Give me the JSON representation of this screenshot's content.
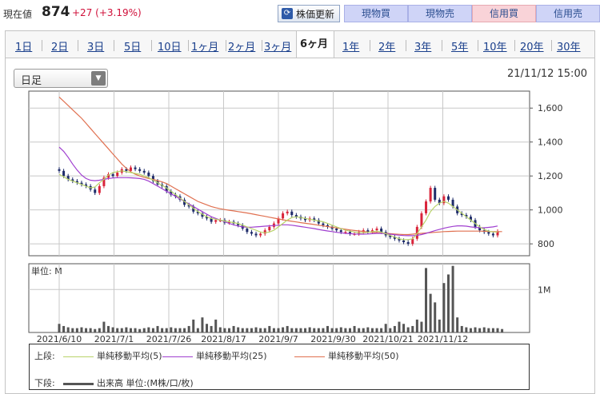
{
  "header": {
    "price_label": "現在値",
    "price": "874",
    "change": "+27 (+3.19%)",
    "refresh_label": "株価更新",
    "buttons": [
      {
        "label": "現物買",
        "style": "blue"
      },
      {
        "label": "現物売",
        "style": "blue"
      },
      {
        "label": "信用買",
        "style": "pink"
      },
      {
        "label": "信用売",
        "style": "blue"
      }
    ]
  },
  "tabs": [
    {
      "label": "1日"
    },
    {
      "label": "2日"
    },
    {
      "label": "3日"
    },
    {
      "label": "5日"
    },
    {
      "label": "10日"
    },
    {
      "label": "1ヶ月"
    },
    {
      "label": "2ヶ月"
    },
    {
      "label": "3ヶ月"
    },
    {
      "label": "6ヶ月",
      "active": true
    },
    {
      "label": "1年"
    },
    {
      "label": "2年"
    },
    {
      "label": "3年"
    },
    {
      "label": "5年"
    },
    {
      "label": "10年"
    },
    {
      "label": "20年"
    },
    {
      "label": "30年"
    }
  ],
  "period_select": "日足",
  "datetime": "21/11/12 15:00",
  "volume_unit_label": "単位: M",
  "legend": {
    "upper_label": "上段:",
    "lower_label": "下段:",
    "items": [
      {
        "label": "単純移動平均(5)",
        "color": "#b9d36a"
      },
      {
        "label": "単純移動平均(25)",
        "color": "#a03fd0"
      },
      {
        "label": "単純移動平均(50)",
        "color": "#e07050"
      }
    ],
    "volume_item": {
      "label": "出来高 単位:(M株/口/枚)",
      "color": "#555555"
    }
  },
  "colors": {
    "up": "#d9243a",
    "down": "#1f2c6a",
    "volume": "#555555",
    "grid": "#c8c8c8"
  },
  "chart_data": {
    "type": "line",
    "x_ticks": [
      "2021/6/10",
      "2021/7/1",
      "2021/7/26",
      "2021/8/17",
      "2021/9/7",
      "2021/9/30",
      "2021/10/21",
      "2021/11/12"
    ],
    "price_axis": {
      "ticks": [
        "800",
        "1,000",
        "1,200",
        "1,400",
        "1,600"
      ],
      "range": [
        730,
        1700
      ]
    },
    "volume_axis": {
      "ticks": [
        "1M"
      ],
      "range": [
        0,
        1.6
      ]
    },
    "series": [
      {
        "key": "ma5",
        "values": [
          1210,
          1195,
          1180,
          1170,
          1160,
          1150,
          1140,
          1130,
          1135,
          1160,
          1180,
          1205,
          1220,
          1225,
          1230,
          1225,
          1220,
          1215,
          1210,
          1200,
          1190,
          1175,
          1160,
          1145,
          1130,
          1110,
          1090,
          1070,
          1050,
          1030,
          1010,
          990,
          975,
          960,
          950,
          945,
          940,
          935,
          930,
          925,
          920,
          910,
          900,
          890,
          880,
          870,
          865,
          870,
          880,
          900,
          920,
          940,
          955,
          960,
          955,
          950,
          945,
          940,
          935,
          930,
          920,
          910,
          900,
          890,
          880,
          875,
          870,
          865,
          865,
          868,
          872,
          875,
          870,
          860,
          850,
          840,
          830,
          825,
          825,
          830,
          860,
          900,
          940,
          990,
          1020,
          1040,
          1050,
          1040,
          1020,
          1000,
          980,
          960,
          940,
          920,
          900,
          885,
          875,
          870,
          870
        ]
      },
      {
        "key": "ma25",
        "values": [
          1370,
          1345,
          1310,
          1270,
          1235,
          1205,
          1185,
          1175,
          1172,
          1175,
          1180,
          1185,
          1188,
          1190,
          1190,
          1190,
          1189,
          1187,
          1185,
          1180,
          1170,
          1155,
          1140,
          1125,
          1110,
          1095,
          1080,
          1065,
          1050,
          1035,
          1020,
          1005,
          990,
          975,
          960,
          950,
          940,
          930,
          920,
          912,
          905,
          900,
          898,
          898,
          900,
          902,
          904,
          906,
          908,
          910,
          912,
          912,
          910,
          906,
          902,
          898,
          894,
          890,
          885,
          880,
          876,
          872,
          868,
          865,
          862,
          860,
          858,
          857,
          857,
          858,
          860,
          862,
          862,
          860,
          857,
          854,
          851,
          849,
          848,
          848,
          850,
          855,
          862,
          870,
          878,
          885,
          892,
          898,
          903,
          906,
          906,
          904,
          900,
          897,
          895,
          895,
          897,
          900,
          905
        ]
      },
      {
        "key": "ma50",
        "values": [
          1665,
          1640,
          1615,
          1590,
          1565,
          1540,
          1510,
          1480,
          1450,
          1420,
          1390,
          1360,
          1330,
          1300,
          1270,
          1245,
          1225,
          1210,
          1200,
          1192,
          1185,
          1180,
          1172,
          1165,
          1155,
          1140,
          1125,
          1110,
          1095,
          1080,
          1065,
          1050,
          1040,
          1030,
          1020,
          1013,
          1007,
          1002,
          998,
          994,
          990,
          986,
          982,
          977,
          972,
          967,
          962,
          957,
          952,
          947,
          942,
          937,
          933,
          929,
          925,
          921,
          918,
          914,
          910,
          906,
          902,
          898,
          894,
          890,
          886,
          882,
          879,
          876,
          873,
          870,
          868,
          866,
          864,
          862,
          860,
          858,
          856,
          855,
          855,
          857,
          860,
          862,
          864,
          866,
          868,
          870,
          872,
          873,
          874,
          875,
          875,
          875,
          875,
          875,
          875,
          874,
          873,
          872,
          872,
          872
        ]
      },
      {
        "key": "candles",
        "values": [
          1230,
          1200,
          1180,
          1170,
          1160,
          1150,
          1140,
          1120,
          1100,
          1140,
          1190,
          1210,
          1200,
          1220,
          1240,
          1230,
          1250,
          1240,
          1230,
          1220,
          1200,
          1170,
          1150,
          1140,
          1110,
          1090,
          1080,
          1060,
          1030,
          1020,
          990,
          980,
          960,
          950,
          930,
          940,
          940,
          925,
          930,
          920,
          910,
          890,
          870,
          860,
          850,
          860,
          880,
          900,
          920,
          950,
          980,
          990,
          970,
          960,
          950,
          940,
          950,
          940,
          920,
          910,
          900,
          890,
          880,
          870,
          870,
          860,
          860,
          870,
          880,
          870,
          880,
          890,
          870,
          850,
          840,
          830,
          820,
          810,
          800,
          830,
          900,
          980,
          1050,
          1130,
          1060,
          1040,
          1080,
          1060,
          1020,
          980,
          970,
          960,
          940,
          900,
          880,
          870,
          860,
          850,
          874
        ]
      },
      {
        "key": "volume",
        "values": [
          0.2,
          0.15,
          0.12,
          0.1,
          0.1,
          0.12,
          0.1,
          0.1,
          0.08,
          0.1,
          0.25,
          0.15,
          0.12,
          0.1,
          0.1,
          0.12,
          0.1,
          0.1,
          0.08,
          0.1,
          0.12,
          0.1,
          0.15,
          0.1,
          0.1,
          0.12,
          0.1,
          0.1,
          0.1,
          0.15,
          0.3,
          0.1,
          0.35,
          0.2,
          0.15,
          0.3,
          0.12,
          0.1,
          0.1,
          0.15,
          0.12,
          0.1,
          0.1,
          0.1,
          0.12,
          0.1,
          0.1,
          0.15,
          0.1,
          0.1,
          0.12,
          0.15,
          0.1,
          0.1,
          0.1,
          0.1,
          0.12,
          0.1,
          0.1,
          0.1,
          0.15,
          0.1,
          0.1,
          0.12,
          0.1,
          0.1,
          0.15,
          0.1,
          0.1,
          0.12,
          0.1,
          0.1,
          0.1,
          0.2,
          0.1,
          0.15,
          0.25,
          0.2,
          0.12,
          0.15,
          0.3,
          0.25,
          1.5,
          0.9,
          0.7,
          0.3,
          1.15,
          1.35,
          1.55,
          0.35,
          0.15,
          0.12,
          0.1,
          0.12,
          0.1,
          0.12,
          0.1,
          0.1,
          0.1,
          0.08
        ]
      }
    ]
  }
}
